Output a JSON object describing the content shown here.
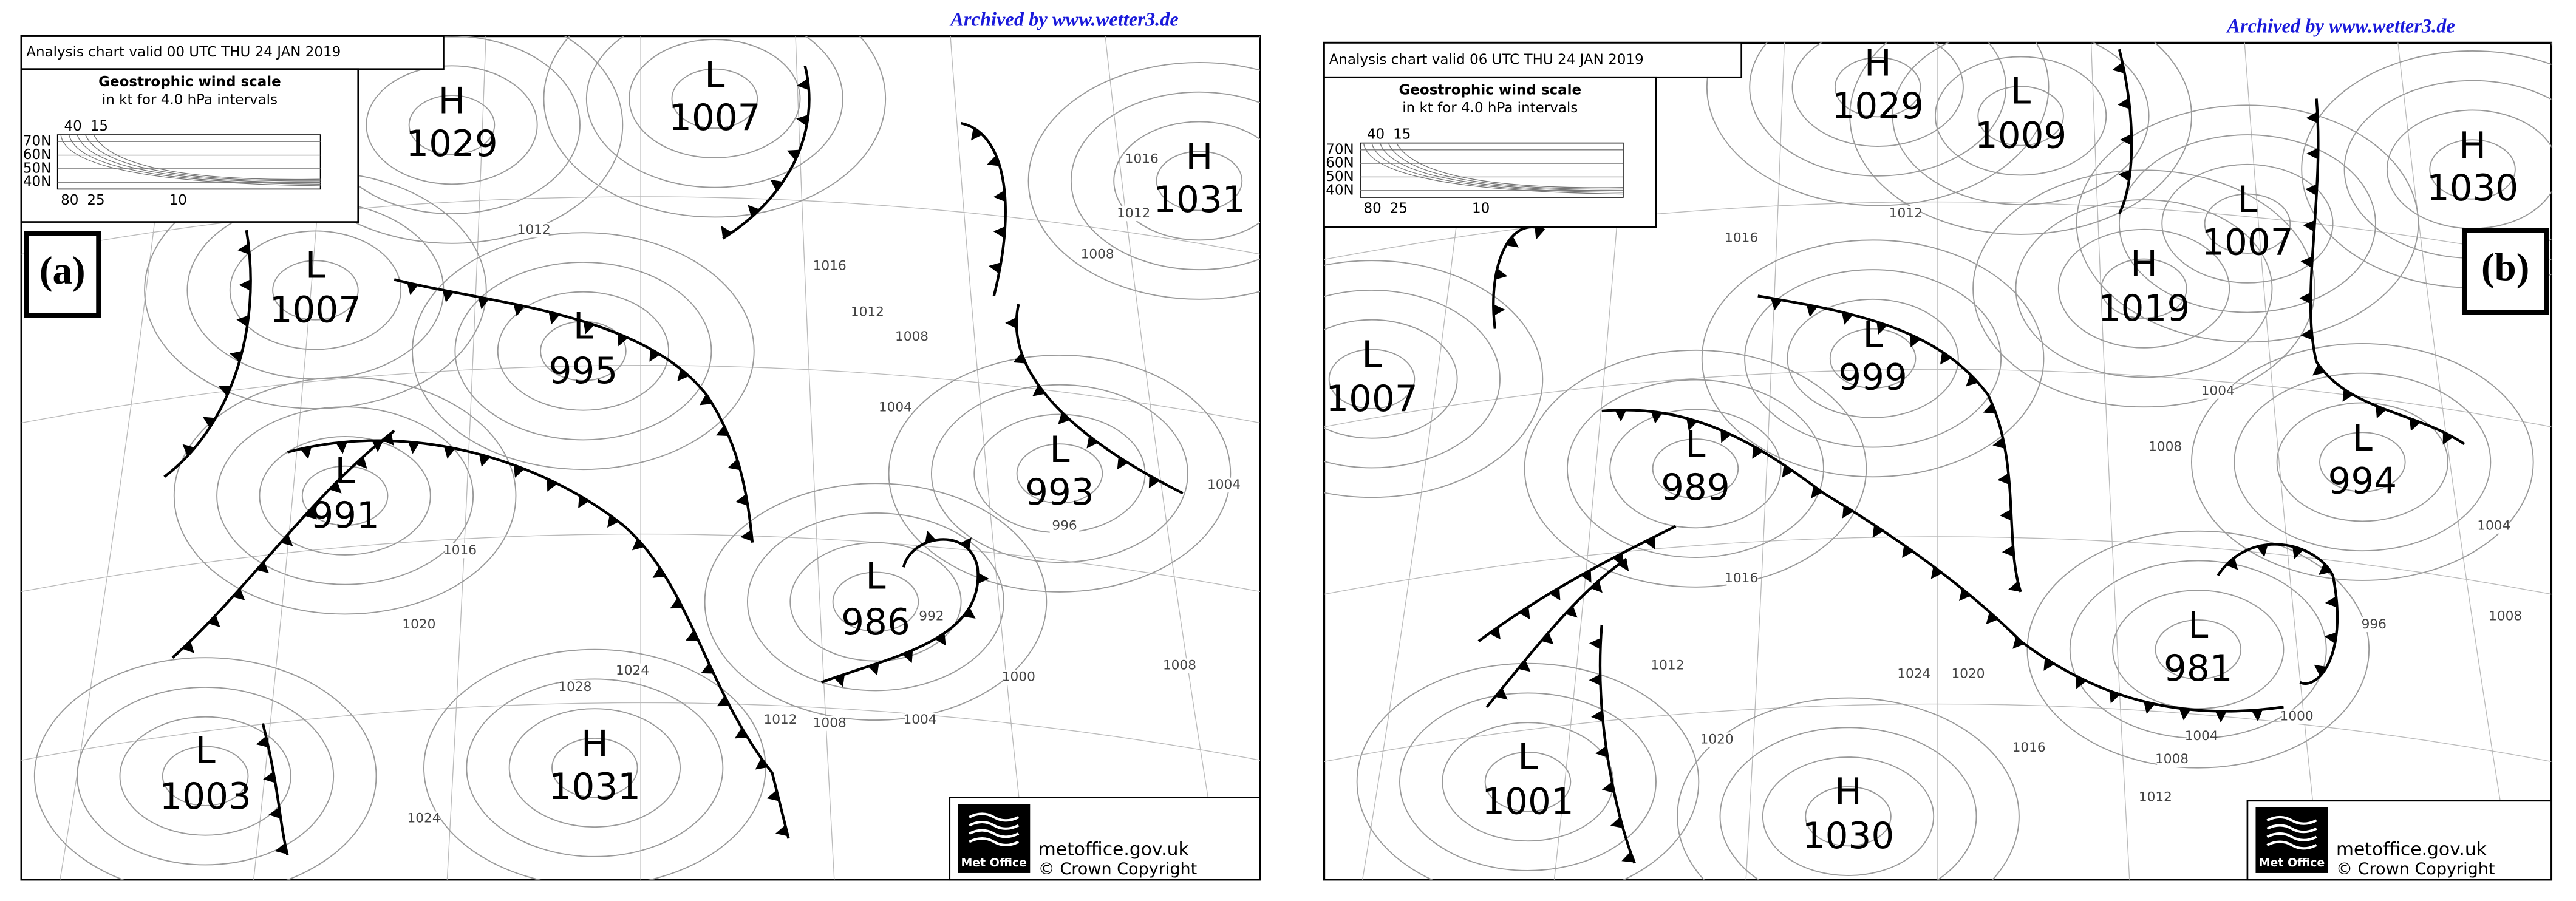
{
  "panels": [
    {
      "label": "(a)",
      "archive": "Archived by www.wetter3.de",
      "header": "Analysis chart  valid 00 UTC THU 24  JAN 2019",
      "wind_scale": {
        "title": "Geostrophic wind scale",
        "subtitle": "in kt for 4.0 hPa intervals",
        "latitudes": [
          "70N",
          "60N",
          "50N",
          "40N"
        ],
        "top_labels": [
          "40",
          "15"
        ],
        "bottom_labels": [
          "80",
          "25",
          "10"
        ]
      },
      "systems": [
        {
          "type": "L",
          "pressure": "1007"
        },
        {
          "type": "H",
          "pressure": "1029"
        },
        {
          "type": "L",
          "pressure": "1007"
        },
        {
          "type": "L",
          "pressure": "995"
        },
        {
          "type": "L",
          "pressure": "991"
        },
        {
          "type": "L",
          "pressure": "986"
        },
        {
          "type": "L",
          "pressure": "993"
        },
        {
          "type": "H",
          "pressure": "1031"
        },
        {
          "type": "L",
          "pressure": "1003"
        },
        {
          "type": "H",
          "pressure": "1031"
        }
      ],
      "isobar_labels": [
        "1012",
        "1008",
        "1004",
        "1000",
        "1004",
        "1008",
        "1012",
        "1016",
        "1020",
        "1024",
        "1028",
        "1024",
        "1016",
        "1012",
        "1016",
        "1012",
        "1008",
        "1004",
        "1008",
        "996",
        "992"
      ],
      "logo": {
        "brand": "Met Office",
        "site": "metoffice.gov.uk",
        "copyright": "© Crown Copyright"
      }
    },
    {
      "label": "(b)",
      "archive": "Archived by www.wetter3.de",
      "header": "Analysis chart  valid 06 UTC THU 24  JAN 2019",
      "wind_scale": {
        "title": "Geostrophic wind scale",
        "subtitle": "in kt for 4.0 hPa intervals",
        "latitudes": [
          "70N",
          "60N",
          "50N",
          "40N"
        ],
        "top_labels": [
          "40",
          "15"
        ],
        "bottom_labels": [
          "80",
          "25",
          "10"
        ]
      },
      "systems": [
        {
          "type": "H",
          "pressure": "1029"
        },
        {
          "type": "L",
          "pressure": "1009"
        },
        {
          "type": "H",
          "pressure": "1030"
        },
        {
          "type": "H",
          "pressure": "1019"
        },
        {
          "type": "L",
          "pressure": "1007"
        },
        {
          "type": "L",
          "pressure": "999"
        },
        {
          "type": "L",
          "pressure": "1007"
        },
        {
          "type": "L",
          "pressure": "989"
        },
        {
          "type": "L",
          "pressure": "994"
        },
        {
          "type": "L",
          "pressure": "981"
        },
        {
          "type": "L",
          "pressure": "1001"
        },
        {
          "type": "H",
          "pressure": "1030"
        }
      ],
      "isobar_labels": [
        "1016",
        "1012",
        "1008",
        "1004",
        "1000",
        "1004",
        "1008",
        "1012",
        "1016",
        "1020",
        "1024",
        "1016",
        "1012",
        "1020",
        "996",
        "1008",
        "1004"
      ],
      "logo": {
        "brand": "Met Office",
        "site": "metoffice.gov.uk",
        "copyright": "© Crown Copyright"
      }
    }
  ]
}
